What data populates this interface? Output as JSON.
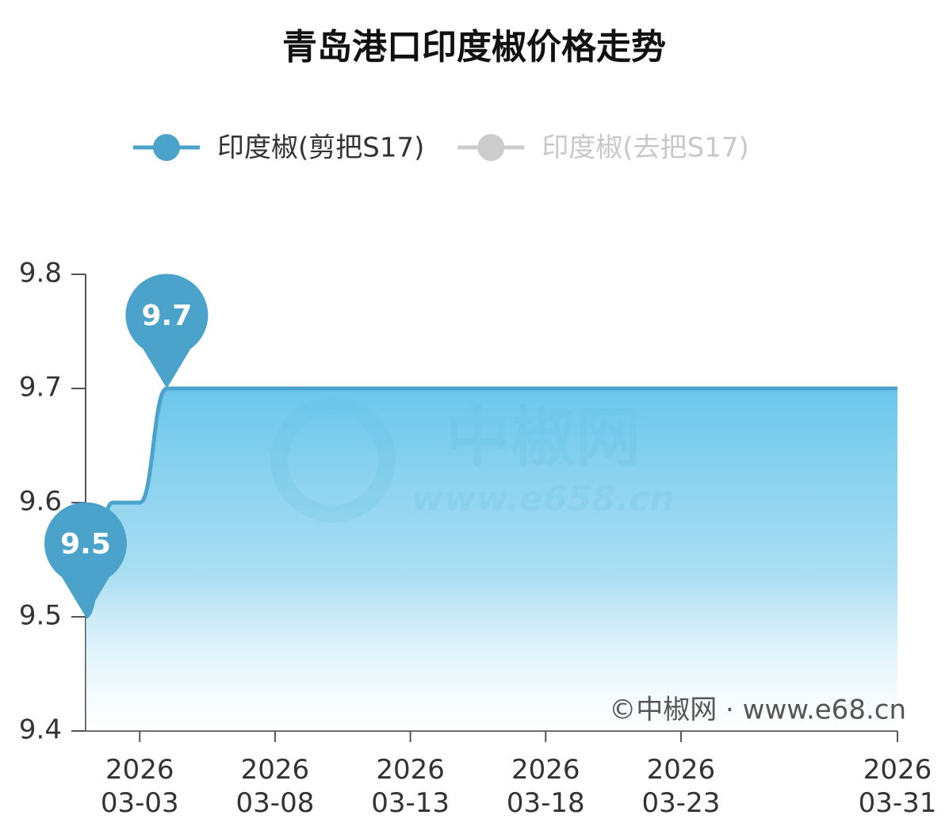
{
  "chart_data": {
    "type": "line",
    "title": "青岛港口印度椒价格走势",
    "x": [
      "2026-03-01",
      "2026-03-02",
      "2026-03-03",
      "2026-03-04",
      "2026-03-05",
      "2026-03-06",
      "2026-03-07",
      "2026-03-08",
      "2026-03-09",
      "2026-03-10",
      "2026-03-11",
      "2026-03-12",
      "2026-03-13",
      "2026-03-14",
      "2026-03-15",
      "2026-03-16",
      "2026-03-17",
      "2026-03-18",
      "2026-03-19",
      "2026-03-20",
      "2026-03-21",
      "2026-03-22",
      "2026-03-23",
      "2026-03-24",
      "2026-03-25",
      "2026-03-26",
      "2026-03-27",
      "2026-03-28",
      "2026-03-29",
      "2026-03-30",
      "2026-03-31"
    ],
    "series": [
      {
        "name": "印度椒(剪把S17)",
        "color": "#4ba3cc",
        "values": [
          9.5,
          9.6,
          9.6,
          9.7,
          9.7,
          9.7,
          9.7,
          9.7,
          9.7,
          9.7,
          9.7,
          9.7,
          9.7,
          9.7,
          9.7,
          9.7,
          9.7,
          9.7,
          9.7,
          9.7,
          9.7,
          9.7,
          9.7,
          9.7,
          9.7,
          9.7,
          9.7,
          9.7,
          9.7,
          9.7,
          9.7
        ],
        "mark_points": [
          3,
          0
        ]
      },
      {
        "name": "印度椒(去把S17)",
        "color": "#cccccc",
        "visible": false
      }
    ],
    "xlim": [
      "2026-03-01",
      "2026-03-31"
    ],
    "xticks": [
      {
        "value": "2026-03-03",
        "label": "2026\n03-03"
      },
      {
        "value": "2026-03-08",
        "label": "2026\n03-08"
      },
      {
        "value": "2026-03-13",
        "label": "2026\n03-13"
      },
      {
        "value": "2026-03-18",
        "label": "2026\n03-18"
      },
      {
        "value": "2026-03-23",
        "label": "2026\n03-23"
      },
      {
        "value": "2026-03-31",
        "label": "2026\n03-31"
      }
    ],
    "ylim": [
      9.4,
      9.8
    ],
    "yticks": [
      9.4,
      9.5,
      9.6,
      9.7,
      9.8
    ],
    "legend": "top",
    "watermark": {
      "brand": "中椒网",
      "url": "www.e658.cn"
    },
    "credit": "©中椒网 · www.e68.cn"
  }
}
